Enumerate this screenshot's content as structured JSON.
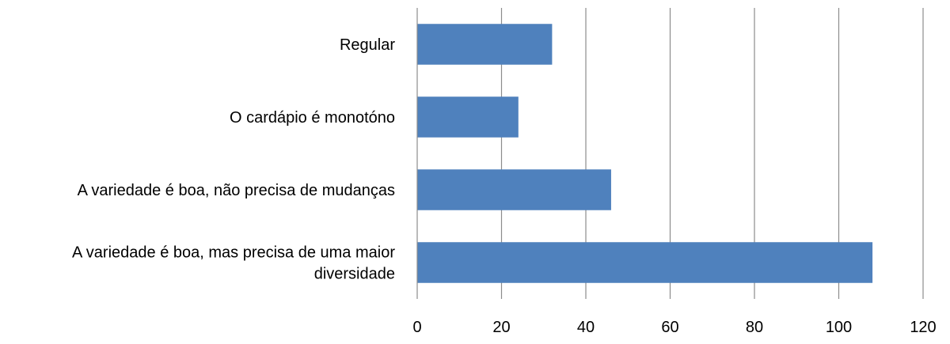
{
  "chart_data": {
    "type": "bar",
    "orientation": "horizontal",
    "title": "",
    "xlabel": "",
    "ylabel": "",
    "categories": [
      "Regular",
      "O cardápio é monotóno",
      "A variedade é boa, não precisa de mudanças",
      "A variedade é boa, mas precisa de uma maior diversidade"
    ],
    "category_display_lines": [
      [
        "Regular"
      ],
      [
        "O cardápio é monotóno"
      ],
      [
        "A variedade é boa, não precisa de mudanças"
      ],
      [
        "A variedade é boa, mas precisa de uma maior",
        "diversidade"
      ]
    ],
    "values": [
      32,
      24,
      46,
      108
    ],
    "xlim": [
      0,
      120
    ],
    "x_ticks": [
      "0",
      "20",
      "40",
      "60",
      "80",
      "100",
      "120"
    ],
    "grid": true,
    "legend": "none",
    "colors": {
      "bar": "#4F81BD",
      "grid": "#8C8C8C",
      "axis": "#8C8C8C",
      "text": "#000000"
    }
  }
}
